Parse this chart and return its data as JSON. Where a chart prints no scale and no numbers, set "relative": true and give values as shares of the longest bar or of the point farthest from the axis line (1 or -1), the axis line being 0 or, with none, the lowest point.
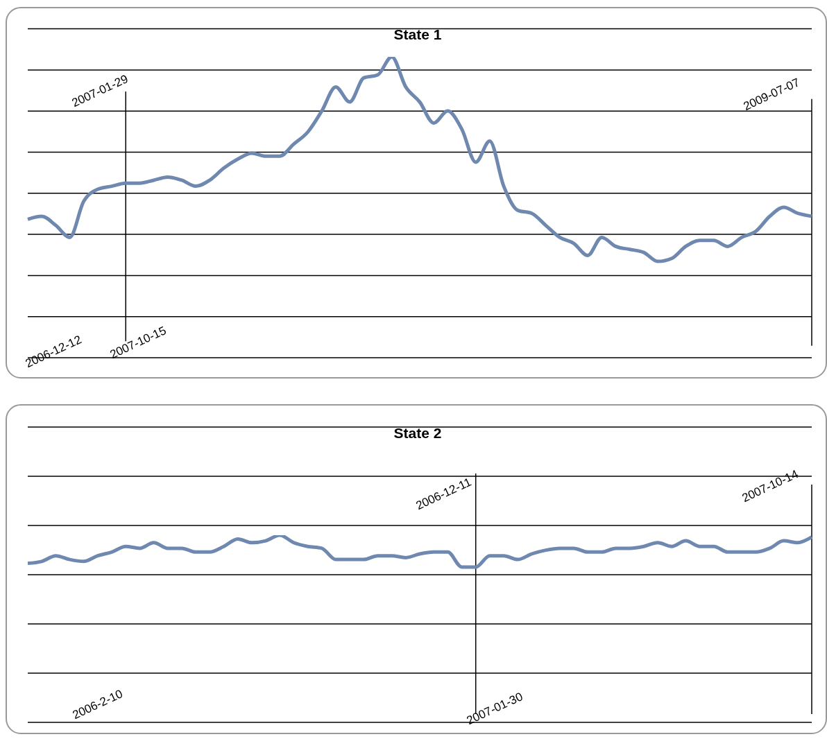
{
  "chart_data": [
    {
      "type": "line",
      "title": "State 1",
      "relative": true,
      "grid": "y",
      "legend": false,
      "marker": "none",
      "line_style": "solid",
      "categories": [
        null,
        null,
        null,
        null,
        null,
        null,
        null,
        null,
        null,
        null,
        null,
        null,
        null,
        null,
        null,
        null,
        null,
        null,
        null,
        null,
        null,
        null,
        null,
        null,
        null,
        null,
        null,
        null,
        null,
        null,
        null,
        null,
        null,
        null,
        null,
        null,
        null,
        null,
        null,
        null,
        null,
        null,
        null,
        null,
        null,
        null,
        null,
        null,
        null,
        null,
        null,
        null,
        null,
        null,
        null,
        null,
        null
      ],
      "series": [
        {
          "color": "#6f88b0",
          "values": [
            0.46,
            0.47,
            0.44,
            0.4,
            0.52,
            0.56,
            0.57,
            0.58,
            0.58,
            0.59,
            0.6,
            0.59,
            0.57,
            0.59,
            0.63,
            0.66,
            0.68,
            0.67,
            0.67,
            0.71,
            0.75,
            0.82,
            0.9,
            0.85,
            0.93,
            0.94,
            1,
            0.9,
            0.85,
            0.78,
            0.82,
            0.76,
            0.65,
            0.72,
            0.57,
            0.49,
            0.48,
            0.44,
            0.4,
            0.38,
            0.34,
            0.4,
            0.37,
            0.36,
            0.35,
            0.32,
            0.33,
            0.37,
            0.39,
            0.39,
            0.37,
            0.4,
            0.42,
            0.47,
            0.5,
            0.48,
            0.47
          ]
        }
      ],
      "annotations": [
        "2007-01-29",
        "2009-07-07",
        "2006-12-12",
        "2007-10-15"
      ]
    },
    {
      "type": "line",
      "title": "State 2",
      "relative": true,
      "grid": "y",
      "legend": false,
      "marker": "none",
      "line_style": "solid",
      "categories": [
        null,
        null,
        null,
        null,
        null,
        null,
        null,
        null,
        null,
        null,
        null,
        null,
        null,
        null,
        null,
        null,
        null,
        null,
        null,
        null,
        null,
        null,
        null,
        null,
        null,
        null,
        null,
        null,
        null,
        null,
        null,
        null,
        null,
        null,
        null,
        null,
        null,
        null,
        null,
        null,
        null,
        null,
        null,
        null,
        null,
        null,
        null,
        null,
        null,
        null,
        null,
        null,
        null,
        null,
        null,
        null,
        null
      ],
      "series": [
        {
          "color": "#6f88b0",
          "values": [
            0.85,
            0.86,
            0.89,
            0.87,
            0.86,
            0.89,
            0.91,
            0.94,
            0.93,
            0.96,
            0.93,
            0.93,
            0.91,
            0.91,
            0.94,
            0.98,
            0.96,
            0.97,
            1,
            0.96,
            0.94,
            0.93,
            0.87,
            0.87,
            0.87,
            0.89,
            0.89,
            0.88,
            0.9,
            0.91,
            0.91,
            0.83,
            0.83,
            0.89,
            0.89,
            0.87,
            0.9,
            0.92,
            0.93,
            0.93,
            0.91,
            0.91,
            0.93,
            0.93,
            0.94,
            0.96,
            0.94,
            0.97,
            0.94,
            0.94,
            0.91,
            0.91,
            0.91,
            0.93,
            0.97,
            0.96,
            0.99
          ]
        }
      ],
      "annotations": [
        "2006-12-11",
        "2007-10-14",
        "2006-2-10",
        "2007-01-30"
      ]
    }
  ]
}
